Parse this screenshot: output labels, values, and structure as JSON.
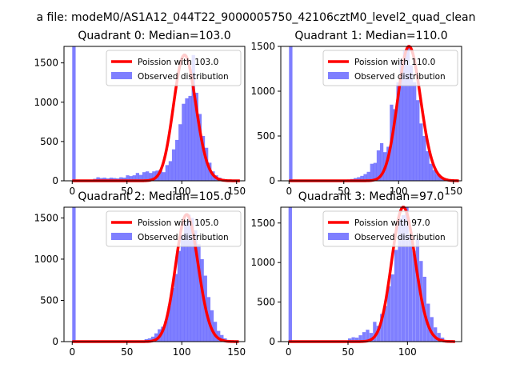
{
  "figure": {
    "suptitle": "a file: modeM0/AS1A12_044T22_9000005750_42106cztM0_level2_quad_clean"
  },
  "chart_data": [
    {
      "type": "bar",
      "title": "Quadrant 0: Median=103.0",
      "xlim": [
        -7.5,
        157.5
      ],
      "ylim": [
        0,
        1710
      ],
      "xticks": [
        0,
        50,
        100,
        150
      ],
      "yticks": [
        0,
        500,
        1000,
        1500
      ],
      "bin_width": 3.125,
      "hist_x": [
        0,
        16,
        19,
        22,
        25,
        28,
        31,
        34,
        37,
        40,
        43,
        46,
        49,
        52,
        55,
        58,
        61,
        64,
        67,
        70,
        73,
        76,
        79,
        82,
        85,
        88,
        91,
        94,
        97,
        100,
        103,
        106,
        109,
        112,
        115,
        118,
        121,
        124,
        127,
        130,
        133,
        136,
        139,
        142,
        145,
        148
      ],
      "hist_y": [
        1710,
        15,
        25,
        45,
        35,
        40,
        30,
        40,
        35,
        30,
        45,
        40,
        70,
        60,
        70,
        100,
        75,
        110,
        120,
        100,
        120,
        130,
        140,
        110,
        200,
        250,
        400,
        520,
        720,
        980,
        1050,
        1080,
        1600,
        1120,
        850,
        570,
        420,
        230,
        120,
        70,
        40,
        25,
        15,
        10,
        5,
        5
      ],
      "poisson_mean": 103.0,
      "poisson_range": [
        0,
        153
      ],
      "legend": [
        "Poission with 103.0",
        "Observed distribution"
      ]
    },
    {
      "type": "bar",
      "title": "Quadrant 1: Median=110.0",
      "xlim": [
        -7.5,
        157.5
      ],
      "ylim": [
        0,
        1500
      ],
      "xticks": [
        0,
        50,
        100,
        150
      ],
      "yticks": [
        0,
        500,
        1000,
        1500
      ],
      "bin_width": 3.125,
      "hist_x": [
        0,
        50,
        53,
        56,
        59,
        62,
        65,
        68,
        71,
        74,
        77,
        80,
        83,
        86,
        89,
        92,
        95,
        98,
        101,
        104,
        107,
        110,
        113,
        116,
        119,
        122,
        125,
        128,
        131,
        134,
        137,
        140,
        143,
        146,
        149
      ],
      "hist_y": [
        1500,
        10,
        15,
        20,
        30,
        40,
        55,
        75,
        100,
        190,
        200,
        340,
        420,
        320,
        380,
        850,
        800,
        1100,
        1350,
        1450,
        1500,
        1290,
        1100,
        900,
        640,
        500,
        330,
        190,
        120,
        75,
        40,
        20,
        10,
        8,
        5
      ],
      "poisson_mean": 110.0,
      "poisson_range": [
        0,
        155
      ],
      "legend": [
        "Poission with 110.0",
        "Observed distribution"
      ]
    },
    {
      "type": "bar",
      "title": "Quadrant 2: Median=105.0",
      "xlim": [
        -7.5,
        157.5
      ],
      "ylim": [
        0,
        1630
      ],
      "xticks": [
        0,
        50,
        100,
        150
      ],
      "yticks": [
        0,
        500,
        1000,
        1500
      ],
      "bin_width": 3.125,
      "hist_x": [
        0,
        60,
        63,
        66,
        69,
        72,
        75,
        78,
        81,
        84,
        87,
        90,
        93,
        96,
        99,
        102,
        105,
        108,
        111,
        114,
        117,
        120,
        123,
        126,
        129,
        132,
        135,
        138,
        141,
        144,
        147
      ],
      "hist_y": [
        1630,
        10,
        15,
        30,
        40,
        60,
        100,
        150,
        180,
        250,
        430,
        650,
        820,
        1100,
        1300,
        1450,
        1540,
        1500,
        1350,
        1180,
        1000,
        800,
        540,
        380,
        240,
        130,
        80,
        40,
        20,
        10,
        5
      ],
      "poisson_mean": 105.0,
      "poisson_range": [
        0,
        152
      ],
      "legend": [
        "Poission with 105.0",
        "Observed distribution"
      ]
    },
    {
      "type": "bar",
      "title": "Quadrant 3: Median=97.0",
      "xlim": [
        -6.5,
        145.5
      ],
      "ylim": [
        0,
        1700
      ],
      "xticks": [
        0,
        50,
        100
      ],
      "yticks": [
        0,
        500,
        1000,
        1500
      ],
      "bin_width": 2.9,
      "hist_x": [
        0,
        50,
        53,
        56,
        59,
        62,
        65,
        68,
        71,
        74,
        77,
        80,
        83,
        86,
        89,
        92,
        95,
        98,
        101,
        104,
        107,
        110,
        113,
        116,
        119,
        122,
        125,
        128,
        131,
        134
      ],
      "hist_y": [
        1700,
        40,
        55,
        50,
        80,
        120,
        150,
        110,
        250,
        200,
        350,
        450,
        700,
        850,
        1160,
        1560,
        1600,
        1700,
        1350,
        1150,
        1300,
        1020,
        820,
        480,
        310,
        180,
        110,
        50,
        20,
        10
      ],
      "poisson_mean": 97.0,
      "poisson_range": [
        0,
        140
      ],
      "legend": [
        "Poission with 97.0",
        "Observed distribution"
      ]
    }
  ]
}
